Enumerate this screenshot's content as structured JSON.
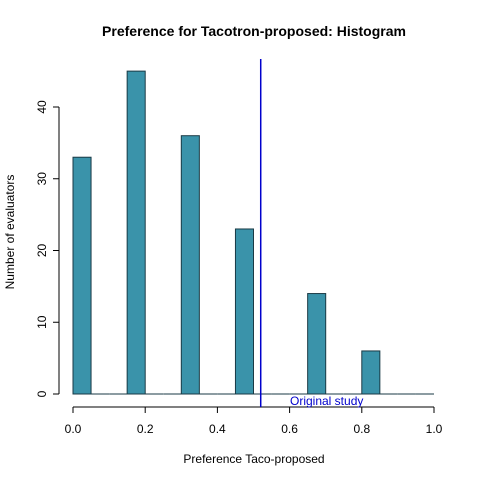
{
  "chart_data": {
    "type": "bar",
    "title": "Preference for Tacotron-proposed: Histogram",
    "xlabel": "Preference Taco-proposed",
    "ylabel": "Number of evaluators",
    "xlim": [
      0,
      1
    ],
    "ylim": [
      0,
      46
    ],
    "x_ticks": [
      "0.0",
      "0.2",
      "0.4",
      "0.6",
      "0.8",
      "1.0"
    ],
    "y_ticks": [
      "0",
      "10",
      "20",
      "30",
      "40"
    ],
    "bars": [
      {
        "x_start": 0.0,
        "x_end": 0.05,
        "value": 33
      },
      {
        "x_start": 0.05,
        "x_end": 0.1,
        "value": 0
      },
      {
        "x_start": 0.1,
        "x_end": 0.15,
        "value": 0
      },
      {
        "x_start": 0.15,
        "x_end": 0.2,
        "value": 45
      },
      {
        "x_start": 0.2,
        "x_end": 0.25,
        "value": 0
      },
      {
        "x_start": 0.25,
        "x_end": 0.3,
        "value": 0
      },
      {
        "x_start": 0.3,
        "x_end": 0.35,
        "value": 36
      },
      {
        "x_start": 0.35,
        "x_end": 0.4,
        "value": 0
      },
      {
        "x_start": 0.4,
        "x_end": 0.45,
        "value": 0
      },
      {
        "x_start": 0.45,
        "x_end": 0.5,
        "value": 23
      },
      {
        "x_start": 0.5,
        "x_end": 0.55,
        "value": 0
      },
      {
        "x_start": 0.55,
        "x_end": 0.6,
        "value": 0
      },
      {
        "x_start": 0.6,
        "x_end": 0.65,
        "value": 0
      },
      {
        "x_start": 0.65,
        "x_end": 0.7,
        "value": 14
      },
      {
        "x_start": 0.7,
        "x_end": 0.75,
        "value": 0
      },
      {
        "x_start": 0.75,
        "x_end": 0.8,
        "value": 0
      },
      {
        "x_start": 0.8,
        "x_end": 0.85,
        "value": 6
      },
      {
        "x_start": 0.85,
        "x_end": 0.9,
        "value": 0
      },
      {
        "x_start": 0.9,
        "x_end": 0.95,
        "value": 0
      },
      {
        "x_start": 0.95,
        "x_end": 1.0,
        "value": 0
      }
    ],
    "reference_line": {
      "x": 0.52,
      "label": "Original study",
      "color": "#0000cc"
    },
    "bar_color": "#3a93aa",
    "bar_edge_color": "#1a3a45",
    "grid": false
  }
}
